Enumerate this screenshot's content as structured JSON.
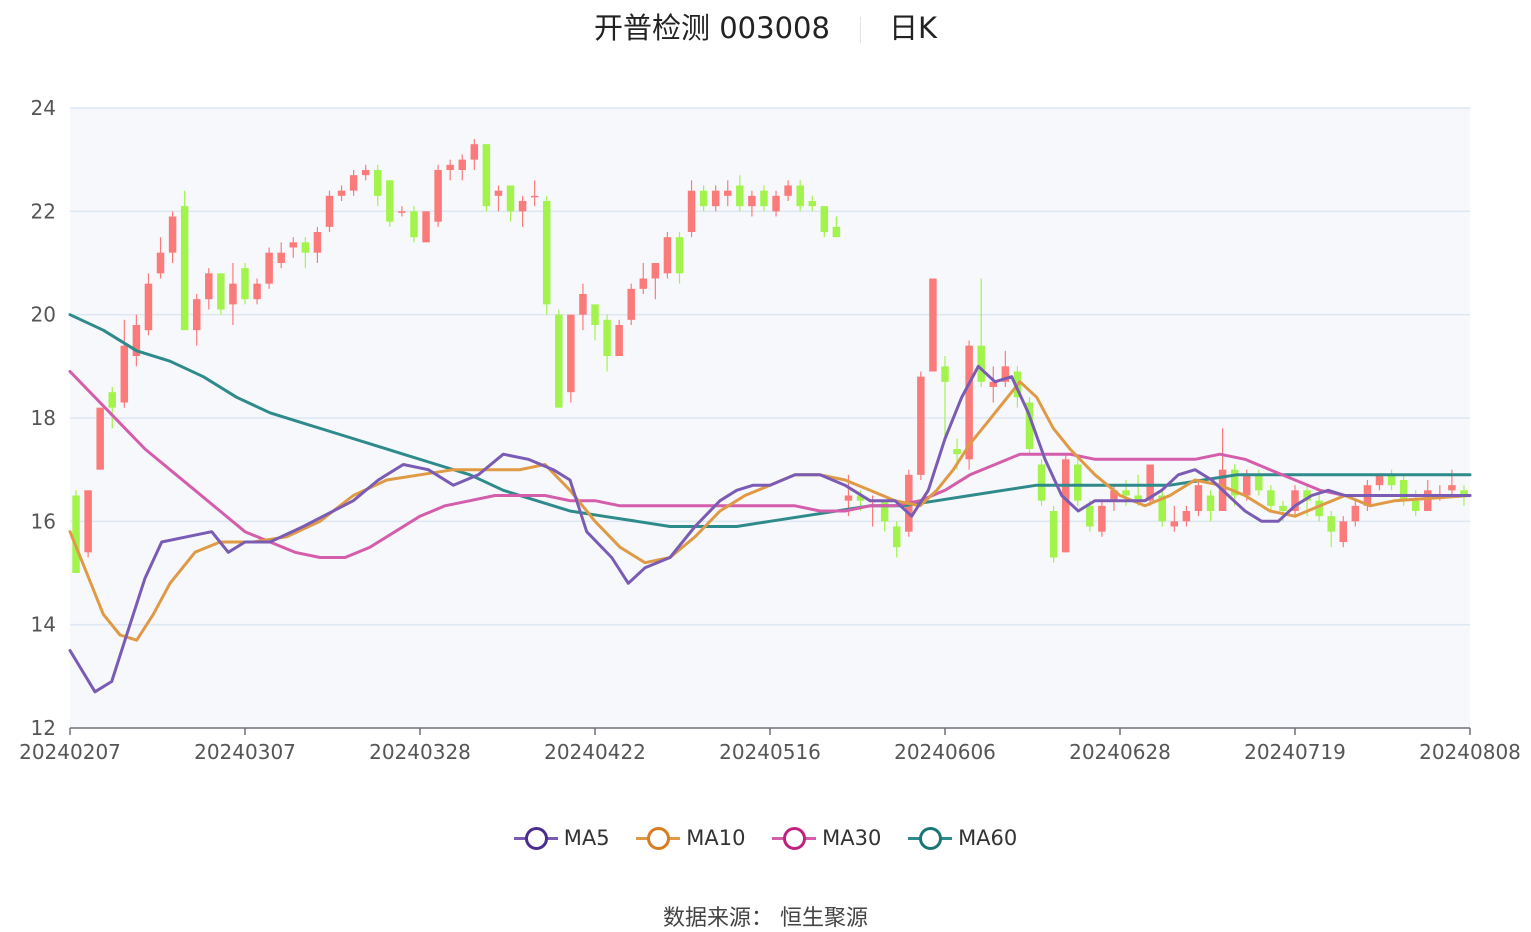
{
  "title": {
    "name": "开普检测 003008",
    "period": "日K"
  },
  "source": "数据来源： 恒生聚源",
  "colors": {
    "up": "#fb7b7b",
    "down": "#a2f44d",
    "ma5": "#7b5cb4",
    "ma10": "#e09a45",
    "ma30": "#d45eab",
    "ma60": "#2f8b8b",
    "grid": "#dde6f3",
    "plot_bg": "#f6f8fc"
  },
  "chart_data": {
    "type": "candlestick",
    "ylim": [
      12,
      24
    ],
    "yticks": [
      "12",
      "14",
      "16",
      "18",
      "20",
      "22",
      "24"
    ],
    "xticks": [
      "20240207",
      "20240307",
      "20240328",
      "20240422",
      "20240516",
      "20240606",
      "20240628",
      "20240719",
      "20240808"
    ],
    "xtick_index": [
      0,
      21,
      42,
      63,
      84,
      105,
      126,
      147,
      168
    ],
    "legend": [
      {
        "name": "MA5",
        "color": "#7b5cb4"
      },
      {
        "name": "MA10",
        "color": "#e09a45"
      },
      {
        "name": "MA30",
        "color": "#d45eab"
      },
      {
        "name": "MA60",
        "color": "#2f8b8b"
      }
    ],
    "candles": [
      [
        16.5,
        15.0,
        16.6,
        15.0
      ],
      [
        15.4,
        16.6,
        16.6,
        15.3
      ],
      [
        17.0,
        18.2,
        18.2,
        17.0
      ],
      [
        18.5,
        18.2,
        18.6,
        17.8
      ],
      [
        18.3,
        19.4,
        19.9,
        18.2
      ],
      [
        19.2,
        19.8,
        20.0,
        19.0
      ],
      [
        19.7,
        20.6,
        20.8,
        19.6
      ],
      [
        20.8,
        21.2,
        21.5,
        20.7
      ],
      [
        21.2,
        21.9,
        22.0,
        21.0
      ],
      [
        22.1,
        19.7,
        22.4,
        19.7
      ],
      [
        19.7,
        20.3,
        20.4,
        19.4
      ],
      [
        20.3,
        20.8,
        20.9,
        20.1
      ],
      [
        20.8,
        20.1,
        20.8,
        20.0
      ],
      [
        20.2,
        20.6,
        21.0,
        19.8
      ],
      [
        20.9,
        20.3,
        21.0,
        20.2
      ],
      [
        20.3,
        20.6,
        20.7,
        20.2
      ],
      [
        20.6,
        21.2,
        21.3,
        20.5
      ],
      [
        21.0,
        21.2,
        21.4,
        20.9
      ],
      [
        21.3,
        21.4,
        21.5,
        21.1
      ],
      [
        21.4,
        21.2,
        21.5,
        20.9
      ],
      [
        21.2,
        21.6,
        21.7,
        21.0
      ],
      [
        21.7,
        22.3,
        22.4,
        21.6
      ],
      [
        22.3,
        22.4,
        22.5,
        22.2
      ],
      [
        22.4,
        22.7,
        22.8,
        22.3
      ],
      [
        22.7,
        22.8,
        22.9,
        22.6
      ],
      [
        22.8,
        22.3,
        22.9,
        22.1
      ],
      [
        22.6,
        21.8,
        22.6,
        21.7
      ],
      [
        22.0,
        22.0,
        22.1,
        21.9
      ],
      [
        22.0,
        21.5,
        22.1,
        21.4
      ],
      [
        21.4,
        22.0,
        22.0,
        21.4
      ],
      [
        21.8,
        22.8,
        22.9,
        21.7
      ],
      [
        22.8,
        22.9,
        23.0,
        22.6
      ],
      [
        22.8,
        23.0,
        23.1,
        22.6
      ],
      [
        23.0,
        23.3,
        23.4,
        22.8
      ],
      [
        23.3,
        22.1,
        23.3,
        22.0
      ],
      [
        22.3,
        22.4,
        22.5,
        22.0
      ],
      [
        22.5,
        22.0,
        22.5,
        21.8
      ],
      [
        22.0,
        22.2,
        22.3,
        21.7
      ],
      [
        22.3,
        22.3,
        22.6,
        22.1
      ],
      [
        22.2,
        20.2,
        22.3,
        20.0
      ],
      [
        20.0,
        18.2,
        20.1,
        18.2
      ],
      [
        18.5,
        20.0,
        20.0,
        18.3
      ],
      [
        20.0,
        20.4,
        20.6,
        19.7
      ],
      [
        20.2,
        19.8,
        20.1,
        19.5
      ],
      [
        19.9,
        19.2,
        20.0,
        18.9
      ],
      [
        19.2,
        19.8,
        19.9,
        19.2
      ],
      [
        19.9,
        20.5,
        20.6,
        19.8
      ],
      [
        20.5,
        20.7,
        21.0,
        20.4
      ],
      [
        20.7,
        21.0,
        21.0,
        20.3
      ],
      [
        20.8,
        21.5,
        21.6,
        20.7
      ],
      [
        21.5,
        20.8,
        21.6,
        20.6
      ],
      [
        21.6,
        22.4,
        22.6,
        21.5
      ],
      [
        22.4,
        22.1,
        22.5,
        22.0
      ],
      [
        22.1,
        22.4,
        22.5,
        22.0
      ],
      [
        22.3,
        22.4,
        22.6,
        22.1
      ],
      [
        22.5,
        22.1,
        22.7,
        22.0
      ],
      [
        22.1,
        22.3,
        22.4,
        21.9
      ],
      [
        22.4,
        22.1,
        22.5,
        22.0
      ],
      [
        22.0,
        22.3,
        22.4,
        21.9
      ],
      [
        22.3,
        22.5,
        22.6,
        22.2
      ],
      [
        22.5,
        22.1,
        22.6,
        22.0
      ],
      [
        22.2,
        22.1,
        22.3,
        22.0
      ],
      [
        22.1,
        21.6,
        22.1,
        21.5
      ],
      [
        21.7,
        21.5,
        21.9,
        21.5
      ],
      [
        16.4,
        16.5,
        16.9,
        16.1
      ],
      [
        16.5,
        16.4,
        16.6,
        16.2
      ],
      [
        16.4,
        16.4,
        16.5,
        15.9
      ],
      [
        16.4,
        16.0,
        16.4,
        15.8
      ],
      [
        15.9,
        15.5,
        16.0,
        15.3
      ],
      [
        15.8,
        16.9,
        17.0,
        15.7
      ],
      [
        16.9,
        18.8,
        18.9,
        16.8
      ],
      [
        18.9,
        20.7,
        20.7,
        19.0
      ],
      [
        19.0,
        18.7,
        19.2,
        17.6
      ],
      [
        17.4,
        17.3,
        17.6,
        17.0
      ],
      [
        17.2,
        19.4,
        19.5,
        17.0
      ],
      [
        19.4,
        18.7,
        20.7,
        18.6
      ],
      [
        18.6,
        18.7,
        19.0,
        18.3
      ],
      [
        18.7,
        19.0,
        19.3,
        18.6
      ],
      [
        18.9,
        18.4,
        19.0,
        18.2
      ],
      [
        18.3,
        17.4,
        18.4,
        17.3
      ],
      [
        17.1,
        16.4,
        17.2,
        16.3
      ],
      [
        16.2,
        15.3,
        16.3,
        15.2
      ],
      [
        15.4,
        17.2,
        17.3,
        15.4
      ],
      [
        17.1,
        16.4,
        17.2,
        16.3
      ],
      [
        16.3,
        15.9,
        16.4,
        15.8
      ],
      [
        15.8,
        16.3,
        16.4,
        15.7
      ],
      [
        16.4,
        16.6,
        16.7,
        16.2
      ],
      [
        16.6,
        16.5,
        16.8,
        16.3
      ],
      [
        16.5,
        16.4,
        16.9,
        16.3
      ],
      [
        16.4,
        17.1,
        17.1,
        16.3
      ],
      [
        16.5,
        16.0,
        16.6,
        15.9
      ],
      [
        15.9,
        16.0,
        16.3,
        15.8
      ],
      [
        16.0,
        16.2,
        16.3,
        15.9
      ],
      [
        16.2,
        16.7,
        16.8,
        16.1
      ],
      [
        16.5,
        16.2,
        16.6,
        16.0
      ],
      [
        16.2,
        17.0,
        17.8,
        16.2
      ],
      [
        17.0,
        16.5,
        17.1,
        16.3
      ],
      [
        16.5,
        16.9,
        17.0,
        16.4
      ],
      [
        16.9,
        16.6,
        17.0,
        16.5
      ],
      [
        16.6,
        16.3,
        16.7,
        16.2
      ],
      [
        16.3,
        16.2,
        16.4,
        16.0
      ],
      [
        16.2,
        16.6,
        16.7,
        16.1
      ],
      [
        16.6,
        16.4,
        16.7,
        16.1
      ],
      [
        16.4,
        16.1,
        16.6,
        16.0
      ],
      [
        16.1,
        15.8,
        16.2,
        15.5
      ],
      [
        15.6,
        16.0,
        16.1,
        15.5
      ],
      [
        16.0,
        16.3,
        16.4,
        15.9
      ],
      [
        16.3,
        16.7,
        16.8,
        16.2
      ],
      [
        16.7,
        16.9,
        16.9,
        16.6
      ],
      [
        16.9,
        16.7,
        17.0,
        16.6
      ],
      [
        16.8,
        16.4,
        16.9,
        16.3
      ],
      [
        16.4,
        16.2,
        16.6,
        16.1
      ],
      [
        16.2,
        16.6,
        16.8,
        16.2
      ],
      [
        16.5,
        16.5,
        16.7,
        16.4
      ],
      [
        16.6,
        16.7,
        17.0,
        16.5
      ],
      [
        16.6,
        16.5,
        16.7,
        16.3
      ]
    ],
    "ma5": [
      [
        0,
        13.5
      ],
      [
        3,
        12.7
      ],
      [
        5,
        12.9
      ],
      [
        7,
        13.9
      ],
      [
        9,
        14.9
      ],
      [
        11,
        15.6
      ],
      [
        14,
        15.7
      ],
      [
        17,
        15.8
      ],
      [
        19,
        15.4
      ],
      [
        21,
        15.6
      ],
      [
        24,
        15.6
      ],
      [
        28,
        15.9
      ],
      [
        34,
        16.4
      ],
      [
        37,
        16.8
      ],
      [
        40,
        17.1
      ],
      [
        43,
        17.0
      ],
      [
        46,
        16.7
      ],
      [
        49,
        16.9
      ],
      [
        52,
        17.3
      ],
      [
        55,
        17.2
      ],
      [
        58,
        17.0
      ],
      [
        60,
        16.8
      ],
      [
        62,
        15.8
      ],
      [
        65,
        15.3
      ],
      [
        67,
        14.8
      ],
      [
        69,
        15.1
      ],
      [
        72,
        15.3
      ],
      [
        75,
        15.9
      ],
      [
        78,
        16.4
      ],
      [
        80,
        16.6
      ],
      [
        82,
        16.7
      ],
      [
        84,
        16.7
      ],
      [
        87,
        16.9
      ],
      [
        90,
        16.9
      ],
      [
        93,
        16.7
      ],
      [
        96,
        16.4
      ],
      [
        99,
        16.4
      ],
      [
        101,
        16.1
      ],
      [
        103,
        16.6
      ],
      [
        105,
        17.6
      ],
      [
        107,
        18.4
      ],
      [
        109,
        19.0
      ],
      [
        111,
        18.7
      ],
      [
        113,
        18.8
      ],
      [
        115,
        18.1
      ],
      [
        117,
        17.2
      ],
      [
        119,
        16.5
      ],
      [
        121,
        16.2
      ],
      [
        123,
        16.4
      ],
      [
        125,
        16.4
      ],
      [
        127,
        16.4
      ],
      [
        129,
        16.4
      ],
      [
        131,
        16.6
      ],
      [
        133,
        16.9
      ],
      [
        135,
        17.0
      ],
      [
        137,
        16.8
      ],
      [
        139,
        16.5
      ],
      [
        141,
        16.2
      ],
      [
        143,
        16.0
      ],
      [
        145,
        16.0
      ],
      [
        147,
        16.3
      ],
      [
        149,
        16.5
      ],
      [
        151,
        16.6
      ],
      [
        153,
        16.5
      ],
      [
        156,
        16.5
      ],
      [
        159,
        16.5
      ],
      [
        168,
        16.5
      ]
    ],
    "ma10": [
      [
        0,
        15.8
      ],
      [
        2,
        15.0
      ],
      [
        4,
        14.2
      ],
      [
        6,
        13.8
      ],
      [
        8,
        13.7
      ],
      [
        10,
        14.2
      ],
      [
        12,
        14.8
      ],
      [
        15,
        15.4
      ],
      [
        18,
        15.6
      ],
      [
        22,
        15.6
      ],
      [
        26,
        15.7
      ],
      [
        30,
        16.0
      ],
      [
        34,
        16.5
      ],
      [
        38,
        16.8
      ],
      [
        42,
        16.9
      ],
      [
        46,
        17.0
      ],
      [
        50,
        17.0
      ],
      [
        54,
        17.0
      ],
      [
        57,
        17.1
      ],
      [
        60,
        16.6
      ],
      [
        63,
        16.0
      ],
      [
        66,
        15.5
      ],
      [
        69,
        15.2
      ],
      [
        72,
        15.3
      ],
      [
        75,
        15.7
      ],
      [
        78,
        16.2
      ],
      [
        81,
        16.5
      ],
      [
        84,
        16.7
      ],
      [
        87,
        16.9
      ],
      [
        90,
        16.9
      ],
      [
        93,
        16.8
      ],
      [
        96,
        16.6
      ],
      [
        99,
        16.4
      ],
      [
        102,
        16.3
      ],
      [
        104,
        16.6
      ],
      [
        106,
        17.0
      ],
      [
        108,
        17.5
      ],
      [
        110,
        17.9
      ],
      [
        112,
        18.3
      ],
      [
        114,
        18.7
      ],
      [
        116,
        18.4
      ],
      [
        118,
        17.8
      ],
      [
        120,
        17.4
      ],
      [
        123,
        16.9
      ],
      [
        126,
        16.5
      ],
      [
        129,
        16.3
      ],
      [
        132,
        16.5
      ],
      [
        135,
        16.8
      ],
      [
        138,
        16.7
      ],
      [
        141,
        16.5
      ],
      [
        144,
        16.2
      ],
      [
        147,
        16.1
      ],
      [
        150,
        16.3
      ],
      [
        153,
        16.5
      ],
      [
        156,
        16.3
      ],
      [
        159,
        16.4
      ],
      [
        168,
        16.5
      ]
    ],
    "ma30": [
      [
        0,
        18.9
      ],
      [
        3,
        18.4
      ],
      [
        6,
        17.9
      ],
      [
        9,
        17.4
      ],
      [
        12,
        17.0
      ],
      [
        15,
        16.6
      ],
      [
        18,
        16.2
      ],
      [
        21,
        15.8
      ],
      [
        24,
        15.6
      ],
      [
        27,
        15.4
      ],
      [
        30,
        15.3
      ],
      [
        33,
        15.3
      ],
      [
        36,
        15.5
      ],
      [
        39,
        15.8
      ],
      [
        42,
        16.1
      ],
      [
        45,
        16.3
      ],
      [
        48,
        16.4
      ],
      [
        51,
        16.5
      ],
      [
        54,
        16.5
      ],
      [
        57,
        16.5
      ],
      [
        60,
        16.4
      ],
      [
        63,
        16.4
      ],
      [
        66,
        16.3
      ],
      [
        69,
        16.3
      ],
      [
        72,
        16.3
      ],
      [
        75,
        16.3
      ],
      [
        78,
        16.3
      ],
      [
        81,
        16.3
      ],
      [
        84,
        16.3
      ],
      [
        87,
        16.3
      ],
      [
        90,
        16.2
      ],
      [
        93,
        16.2
      ],
      [
        96,
        16.3
      ],
      [
        99,
        16.3
      ],
      [
        102,
        16.4
      ],
      [
        105,
        16.6
      ],
      [
        108,
        16.9
      ],
      [
        111,
        17.1
      ],
      [
        114,
        17.3
      ],
      [
        117,
        17.3
      ],
      [
        120,
        17.3
      ],
      [
        123,
        17.2
      ],
      [
        126,
        17.2
      ],
      [
        129,
        17.2
      ],
      [
        132,
        17.2
      ],
      [
        135,
        17.2
      ],
      [
        138,
        17.3
      ],
      [
        141,
        17.2
      ],
      [
        144,
        17.0
      ],
      [
        147,
        16.8
      ],
      [
        150,
        16.6
      ],
      [
        153,
        16.5
      ],
      [
        156,
        16.5
      ],
      [
        159,
        16.5
      ],
      [
        168,
        16.5
      ]
    ],
    "ma60": [
      [
        0,
        20.0
      ],
      [
        4,
        19.7
      ],
      [
        8,
        19.3
      ],
      [
        12,
        19.1
      ],
      [
        16,
        18.8
      ],
      [
        20,
        18.4
      ],
      [
        24,
        18.1
      ],
      [
        28,
        17.9
      ],
      [
        32,
        17.7
      ],
      [
        36,
        17.5
      ],
      [
        40,
        17.3
      ],
      [
        44,
        17.1
      ],
      [
        48,
        16.9
      ],
      [
        52,
        16.6
      ],
      [
        56,
        16.4
      ],
      [
        60,
        16.2
      ],
      [
        64,
        16.1
      ],
      [
        68,
        16.0
      ],
      [
        72,
        15.9
      ],
      [
        76,
        15.9
      ],
      [
        80,
        15.9
      ],
      [
        84,
        16.0
      ],
      [
        88,
        16.1
      ],
      [
        92,
        16.2
      ],
      [
        96,
        16.3
      ],
      [
        100,
        16.3
      ],
      [
        104,
        16.4
      ],
      [
        108,
        16.5
      ],
      [
        112,
        16.6
      ],
      [
        116,
        16.7
      ],
      [
        120,
        16.7
      ],
      [
        124,
        16.7
      ],
      [
        128,
        16.7
      ],
      [
        132,
        16.7
      ],
      [
        136,
        16.8
      ],
      [
        140,
        16.9
      ],
      [
        144,
        16.9
      ],
      [
        148,
        16.9
      ],
      [
        152,
        16.9
      ],
      [
        156,
        16.9
      ],
      [
        160,
        16.9
      ],
      [
        168,
        16.9
      ]
    ]
  }
}
